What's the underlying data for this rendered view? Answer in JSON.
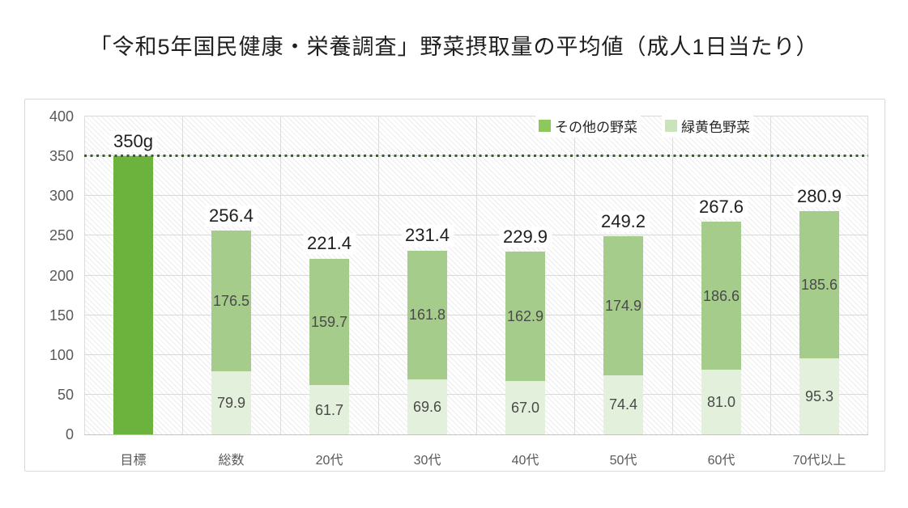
{
  "title": "「令和5年国民健康・栄養調査」野菜摂取量の平均値（成人1日当たり）",
  "legend": {
    "items": [
      {
        "label": "その他の野菜",
        "color": "#8dc85c"
      },
      {
        "label": "緑黄色野菜",
        "color": "#cbe3bb"
      }
    ]
  },
  "colors": {
    "target_bar": "#6cb33e",
    "other_vegetables_bar": "#a5cc8b",
    "green_yellow_vegetables_bar": "#e3f0dc",
    "target_line": "#3a5f28",
    "gridline": "#d9d9d9",
    "axis_text": "#595959",
    "value_label_text": "#1f1f1f",
    "inner_label_text": "#4a4a4a"
  },
  "chart_data": {
    "type": "bar",
    "stacked": true,
    "title": "「令和5年国民健康・栄養調査」野菜摂取量の平均値（成人1日当たり）",
    "categories": [
      "目標",
      "総数",
      "20代",
      "30代",
      "40代",
      "50代",
      "60代",
      "70代以上"
    ],
    "target": {
      "category": "目標",
      "value": 350,
      "label": "350g"
    },
    "series": [
      {
        "name": "緑黄色野菜",
        "color": "#e3f0dc",
        "values": [
          null,
          79.9,
          61.7,
          69.6,
          67.0,
          74.4,
          81.0,
          95.3
        ]
      },
      {
        "name": "その他の野菜",
        "color": "#a5cc8b",
        "values": [
          null,
          176.5,
          159.7,
          161.8,
          162.9,
          174.9,
          186.6,
          185.6
        ]
      }
    ],
    "totals": [
      350,
      256.4,
      221.4,
      231.4,
      229.9,
      249.2,
      267.6,
      280.9
    ],
    "total_labels": [
      "350g",
      "256.4",
      "221.4",
      "231.4",
      "229.9",
      "249.2",
      "267.6",
      "280.9"
    ],
    "xlabel": "",
    "ylabel": "",
    "ylim": [
      0,
      400
    ],
    "yticks": [
      0,
      50,
      100,
      150,
      200,
      250,
      300,
      350,
      400
    ],
    "reference_line": 350,
    "grid": true,
    "legend_position": "top-right"
  }
}
